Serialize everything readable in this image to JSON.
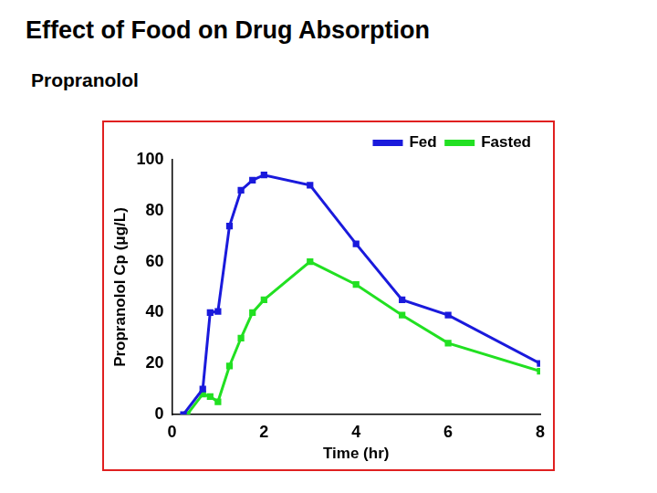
{
  "chart_data": {
    "type": "line",
    "title": "Effect of Food on Drug Absorption",
    "subtitle": "Propranolol",
    "x_label": "Time (hr)",
    "y_label": "Propranolol Cp (μg/L)",
    "series": [
      {
        "name": "Fed",
        "color": "#1a1adc",
        "marker": "square",
        "line_style": "solid",
        "x": [
          0.25,
          0.67,
          0.83,
          1,
          1.25,
          1.5,
          1.75,
          2,
          3,
          4,
          5,
          6,
          8
        ],
        "values": [
          0,
          10,
          40,
          40.5,
          74,
          88,
          92,
          94,
          90,
          67,
          45,
          39,
          20
        ]
      },
      {
        "name": "Fasted",
        "color": "#22e022",
        "marker": "square",
        "line_style": "solid",
        "x": [
          0.33,
          0.67,
          0.83,
          1,
          1.25,
          1.5,
          1.75,
          2,
          3,
          4,
          5,
          6,
          8
        ],
        "values": [
          0,
          8,
          7,
          5,
          19,
          30,
          40,
          45,
          60,
          51,
          39,
          28,
          17
        ]
      }
    ],
    "xlim": [
      0,
      8
    ],
    "xticks": [
      0,
      2,
      4,
      6,
      8
    ],
    "ylim": [
      0,
      100
    ],
    "yticks": [
      0,
      20,
      40,
      60,
      80,
      100
    ],
    "grid": false,
    "legend": "upper right"
  }
}
